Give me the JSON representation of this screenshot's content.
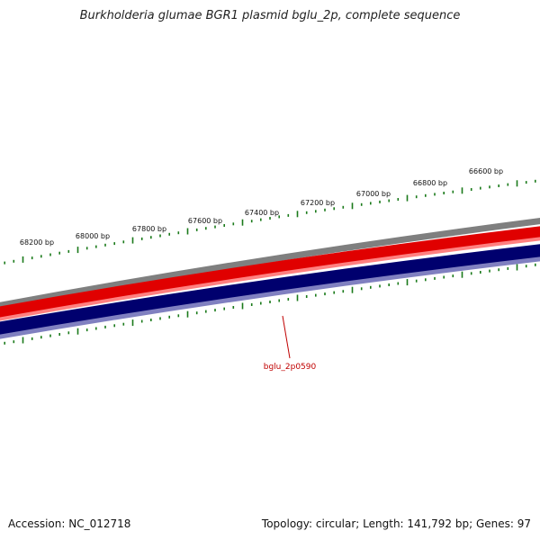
{
  "title": "Burkholderia glumae BGR1 plasmid bglu_2p, complete sequence",
  "accession_text": "Accession: NC_012718",
  "summary_text": "Topology: circular; Length: 141,792 bp; Genes: 97",
  "ruler_labels": [
    "66600 bp",
    "66800 bp",
    "67000 bp",
    "67200 bp",
    "67400 bp",
    "67600 bp",
    "67800 bp",
    "68000 bp",
    "68200 bp"
  ],
  "gene_labels": [
    "bglu_2p0590"
  ],
  "colors": {
    "tick": "#1a7a1a",
    "outer_ring": "#7f7f7f",
    "forward_strand": "#e00000",
    "forward_strand_light": "#ff8080",
    "reverse_strand": "#00006e",
    "reverse_strand_light": "#8080c0",
    "gene_label": "#c00000"
  }
}
